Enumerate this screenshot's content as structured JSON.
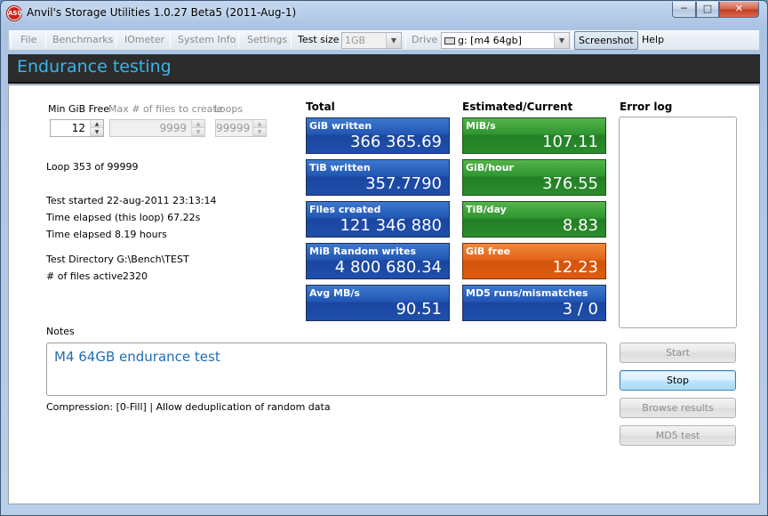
{
  "window": {
    "title": "Anvil's Storage Utilities 1.0.27 Beta5 (2011-Aug-1)",
    "icon_text": "ASU",
    "minimize_glyph": "─",
    "maximize_glyph": "□",
    "close_glyph": "✕"
  },
  "toolbar": {
    "file": "File",
    "benchmarks": "Benchmarks",
    "iometer": "IOmeter",
    "system_info": "System Info",
    "settings": "Settings",
    "test_size_label": "Test size",
    "test_size_value": "1GB",
    "drive_label": "Drive",
    "drive_value": "g: [m4 64gb]",
    "screenshot": "Screenshot",
    "help": "Help"
  },
  "header": {
    "title": "Endurance testing"
  },
  "params": {
    "min_gib_free_label": "Min GiB Free",
    "min_gib_free_value": "12",
    "max_files_label": "Max # of files to create",
    "max_files_value": "9999",
    "loops_label": "Loops",
    "loops_value": "99999"
  },
  "info": {
    "loop": "Loop 353 of 99999",
    "test_started": "Test started 22-aug-2011 23:13:14",
    "time_loop": "Time elapsed (this loop) 67.22s",
    "time_total": "Time elapsed 8.19 hours",
    "test_dir": "Test Directory G:\\Bench\\TEST",
    "files_active_label": "# of files active",
    "files_active_value": "2320"
  },
  "total": {
    "heading": "Total",
    "tiles": [
      {
        "label": "GiB written",
        "value": "366 365.69"
      },
      {
        "label": "TiB written",
        "value": "357.7790"
      },
      {
        "label": "Files created",
        "value": "121 346 880"
      },
      {
        "label": "MiB Random writes",
        "value": "4 800 680.34"
      },
      {
        "label": "Avg MB/s",
        "value": "90.51"
      }
    ]
  },
  "estimated": {
    "heading": "Estimated/Current",
    "tiles": [
      {
        "label": "MiB/s",
        "value": "107.11"
      },
      {
        "label": "GiB/hour",
        "value": "376.55"
      },
      {
        "label": "TiB/day",
        "value": "8.83"
      },
      {
        "label": "GiB free",
        "value": "12.23"
      },
      {
        "label": "MD5 runs/mismatches",
        "value": "3 / 0"
      }
    ]
  },
  "error_log": {
    "heading": "Error log"
  },
  "notes": {
    "label": "Notes",
    "text": "M4 64GB endurance test"
  },
  "compression": "Compression: [0-Fill]  | Allow deduplication of random data",
  "buttons": {
    "start": "Start",
    "stop": "Stop",
    "browse": "Browse results",
    "md5": "MD5 test"
  },
  "colors": {
    "header_title": "#35b6f0",
    "tile_blue": "#2257b4",
    "tile_green": "#2f9630",
    "tile_orange": "#e3641a",
    "notes_text": "#1e6eb5"
  }
}
